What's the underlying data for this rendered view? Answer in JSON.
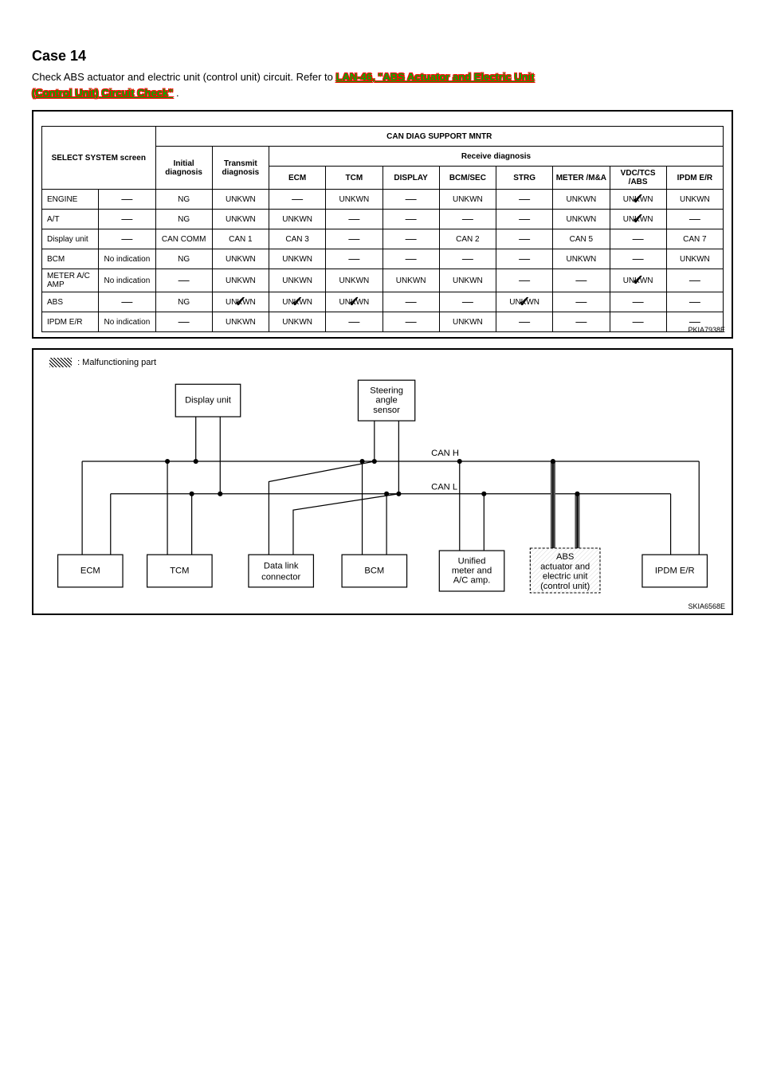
{
  "header": {
    "case_title": "Case 14",
    "line1_prefix": "Check ABS actuator and electric unit (control unit) circuit. Refer to ",
    "link_text_1": "LAN-46, \"ABS Actuator and Electric Unit",
    "link_text_2": "(Control Unit) Circuit Check\"",
    "period": " ."
  },
  "table": {
    "title": "CAN DIAG SUPPORT MNTR",
    "h_select": "SELECT SYSTEM screen",
    "h_initial": "Initial diagnosis",
    "h_transmit": "Transmit diagnosis",
    "h_receive": "Receive diagnosis",
    "cols": [
      "ECM",
      "TCM",
      "DISPLAY",
      "BCM/SEC",
      "STRG",
      "METER /M&A",
      "VDC/TCS /ABS",
      "IPDM E/R"
    ],
    "rows": [
      {
        "sys": "ENGINE",
        "ind": "—",
        "init": "NG",
        "tx": "UNKWN",
        "rx": [
          "—",
          "UNKWN",
          "—",
          "UNKWN",
          "—",
          "UNKWN",
          "UNKWN",
          "UNKWN"
        ],
        "checks": [
          false,
          false,
          false,
          false,
          false,
          false,
          true,
          false
        ]
      },
      {
        "sys": "A/T",
        "ind": "—",
        "init": "NG",
        "tx": "UNKWN",
        "rx": [
          "UNKWN",
          "—",
          "—",
          "—",
          "—",
          "UNKWN",
          "UNKWN",
          "—"
        ],
        "checks": [
          false,
          false,
          false,
          false,
          false,
          false,
          true,
          false
        ]
      },
      {
        "sys": "Display unit",
        "ind": "—",
        "init": "CAN COMM",
        "tx": "CAN 1",
        "rx": [
          "CAN 3",
          "—",
          "—",
          "CAN 2",
          "—",
          "CAN 5",
          "—",
          "CAN 7"
        ],
        "checks": [
          false,
          false,
          false,
          false,
          false,
          false,
          false,
          false
        ]
      },
      {
        "sys": "BCM",
        "ind": "No indication",
        "init": "NG",
        "tx": "UNKWN",
        "rx": [
          "UNKWN",
          "—",
          "—",
          "—",
          "—",
          "UNKWN",
          "—",
          "UNKWN"
        ],
        "checks": [
          false,
          false,
          false,
          false,
          false,
          false,
          false,
          false
        ]
      },
      {
        "sys": "METER A/C AMP",
        "ind": "No indication",
        "init": "—",
        "tx": "UNKWN",
        "rx": [
          "UNKWN",
          "UNKWN",
          "UNKWN",
          "UNKWN",
          "—",
          "—",
          "UNKWN",
          "—"
        ],
        "checks": [
          false,
          false,
          false,
          false,
          false,
          false,
          true,
          false
        ]
      },
      {
        "sys": "ABS",
        "ind": "—",
        "init": "NG",
        "tx": "UNKWN",
        "rx": [
          "UNKWN",
          "UNKWN",
          "—",
          "—",
          "UNKWN",
          "—",
          "—",
          "—"
        ],
        "checks_tx": true,
        "checks": [
          true,
          true,
          false,
          false,
          true,
          false,
          false,
          false
        ]
      },
      {
        "sys": "IPDM E/R",
        "ind": "No indication",
        "init": "—",
        "tx": "UNKWN",
        "rx": [
          "UNKWN",
          "—",
          "—",
          "UNKWN",
          "—",
          "—",
          "—",
          "—"
        ],
        "checks": [
          false,
          false,
          false,
          false,
          false,
          false,
          false,
          false
        ]
      }
    ],
    "figcode": "PKIA7938E"
  },
  "diagram": {
    "legend": ": Malfunctioning part",
    "can_h": "CAN H",
    "can_l": "CAN L",
    "figcode": "SKIA6568E",
    "nodes": {
      "display": "Display unit",
      "steering1": "Steering",
      "steering2": "angle",
      "steering3": "sensor",
      "ecm": "ECM",
      "tcm": "TCM",
      "dlc1": "Data link",
      "dlc2": "connector",
      "bcm": "BCM",
      "meter1": "Unified",
      "meter2": "meter and",
      "meter3": "A/C amp.",
      "abs1": "ABS",
      "abs2": "actuator and",
      "abs3": "electric unit",
      "abs4": "(control unit)",
      "ipdm": "IPDM E/R"
    }
  }
}
